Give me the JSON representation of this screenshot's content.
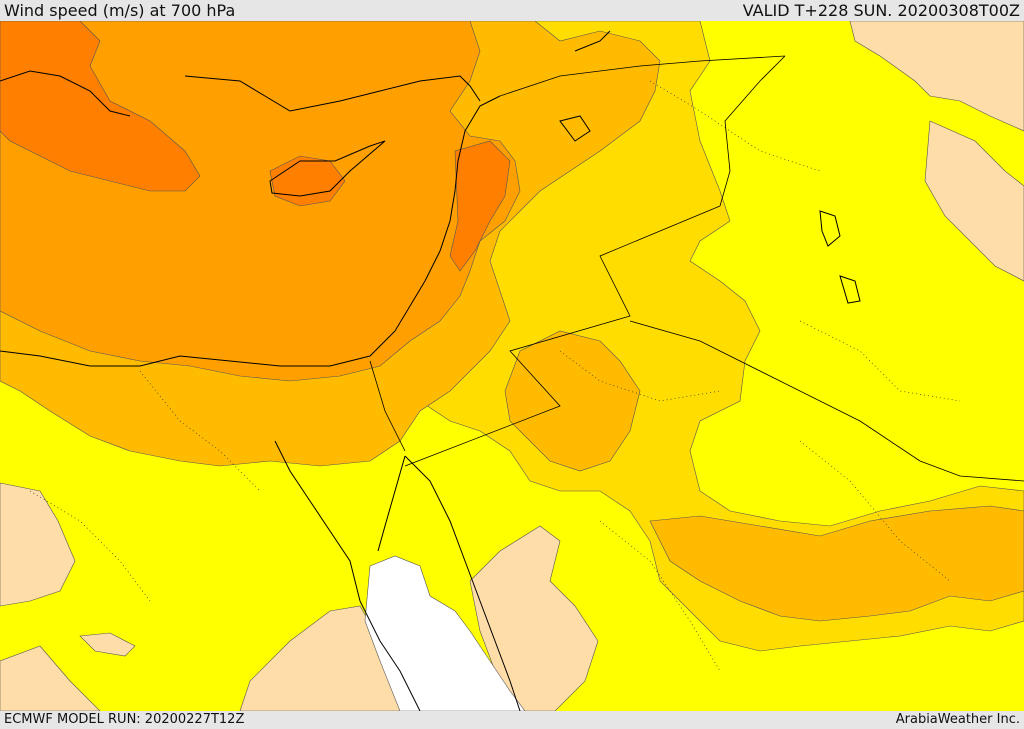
{
  "header": {
    "title": "Wind speed (m/s) at 700 hPa",
    "valid": "VALID T+228 SUN. 20200308T00Z"
  },
  "footer": {
    "model_run": "ECMWF MODEL RUN: 20200227T12Z",
    "credit": "ArabiaWeather Inc."
  },
  "map": {
    "field": "wind speed",
    "level": "700 hPa",
    "region": "Eastern Mediterranean, Levant, Egypt, Red Sea, Arabian Peninsula",
    "colors": {
      "white": "#ffffff",
      "tan": "#ffdda8",
      "yellow": "#ffff00",
      "gold": "#ffdd00",
      "light_orange": "#ffbb00",
      "orange": "#ff9f00",
      "dark_orange": "#ff7f00"
    }
  }
}
